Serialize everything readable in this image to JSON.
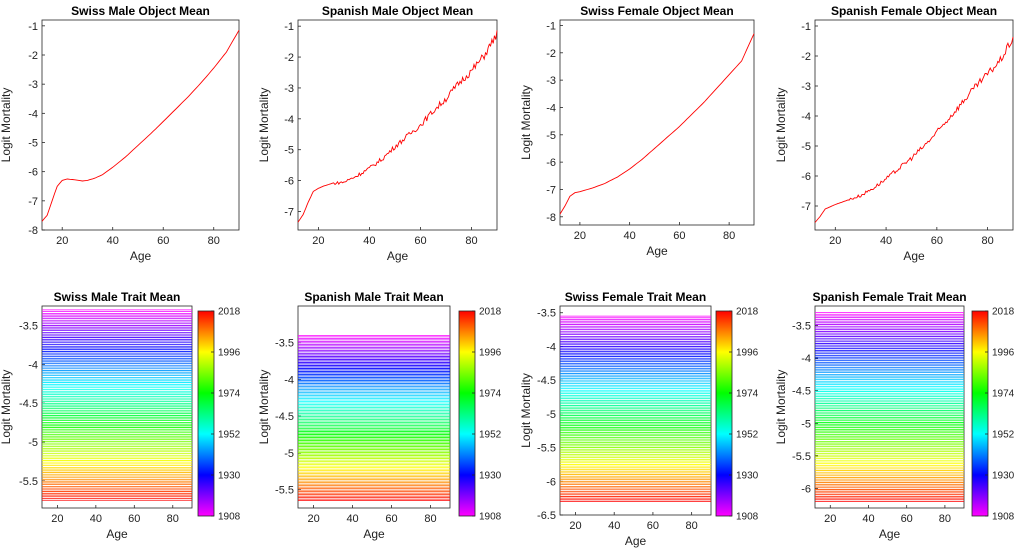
{
  "colors": {
    "object_line": "#ff0000",
    "axis": "#262626"
  },
  "chart_data": [
    {
      "type": "line",
      "title": "Swiss Male Object Mean",
      "xlabel": "Age",
      "ylabel": "Logit Mortality",
      "xlim": [
        12,
        90
      ],
      "ylim": [
        -8,
        -0.8
      ],
      "xticks": [
        20,
        40,
        60,
        80
      ],
      "yticks": [
        -8,
        -7,
        -6,
        -5,
        -4,
        -3,
        -2,
        -1
      ],
      "noisy": false,
      "series": [
        {
          "color": "#ff0000",
          "points": [
            [
              12,
              -7.7
            ],
            [
              14,
              -7.5
            ],
            [
              16,
              -7.0
            ],
            [
              18,
              -6.5
            ],
            [
              20,
              -6.3
            ],
            [
              22,
              -6.25
            ],
            [
              25,
              -6.28
            ],
            [
              28,
              -6.32
            ],
            [
              30,
              -6.3
            ],
            [
              33,
              -6.22
            ],
            [
              36,
              -6.1
            ],
            [
              40,
              -5.85
            ],
            [
              45,
              -5.5
            ],
            [
              50,
              -5.1
            ],
            [
              55,
              -4.7
            ],
            [
              60,
              -4.28
            ],
            [
              65,
              -3.85
            ],
            [
              70,
              -3.42
            ],
            [
              75,
              -2.95
            ],
            [
              80,
              -2.45
            ],
            [
              85,
              -1.9
            ],
            [
              90,
              -1.15
            ]
          ]
        }
      ]
    },
    {
      "type": "line",
      "title": "Spanish Male Object Mean",
      "xlabel": "Age",
      "ylabel": "Logit Mortality",
      "xlim": [
        12,
        90
      ],
      "ylim": [
        -7.6,
        -0.8
      ],
      "xticks": [
        20,
        40,
        60,
        80
      ],
      "yticks": [
        -7,
        -6,
        -5,
        -4,
        -3,
        -2,
        -1
      ],
      "noisy": true,
      "series": [
        {
          "color": "#ff0000",
          "points": [
            [
              12,
              -7.35
            ],
            [
              14,
              -7.1
            ],
            [
              16,
              -6.7
            ],
            [
              18,
              -6.35
            ],
            [
              20,
              -6.25
            ],
            [
              22,
              -6.18
            ],
            [
              25,
              -6.1
            ],
            [
              30,
              -6.05
            ],
            [
              35,
              -5.85
            ],
            [
              40,
              -5.6
            ],
            [
              45,
              -5.3
            ],
            [
              50,
              -4.9
            ],
            [
              55,
              -4.55
            ],
            [
              60,
              -4.2
            ],
            [
              65,
              -3.75
            ],
            [
              70,
              -3.35
            ],
            [
              75,
              -2.85
            ],
            [
              80,
              -2.45
            ],
            [
              85,
              -1.95
            ],
            [
              90,
              -1.25
            ]
          ]
        }
      ]
    },
    {
      "type": "line",
      "title": "Swiss Female Object Mean",
      "xlabel": "Age",
      "ylabel": "Logit Mortality",
      "xlim": [
        12,
        90
      ],
      "ylim": [
        -8.3,
        -0.8
      ],
      "xticks": [
        20,
        40,
        60,
        80
      ],
      "yticks": [
        -8,
        -7,
        -6,
        -5,
        -4,
        -3,
        -2,
        -1
      ],
      "noisy": false,
      "series": [
        {
          "color": "#ff0000",
          "points": [
            [
              12,
              -7.9
            ],
            [
              14,
              -7.6
            ],
            [
              16,
              -7.25
            ],
            [
              18,
              -7.12
            ],
            [
              20,
              -7.08
            ],
            [
              25,
              -6.95
            ],
            [
              30,
              -6.78
            ],
            [
              35,
              -6.55
            ],
            [
              40,
              -6.25
            ],
            [
              45,
              -5.9
            ],
            [
              50,
              -5.5
            ],
            [
              55,
              -5.1
            ],
            [
              60,
              -4.7
            ],
            [
              65,
              -4.25
            ],
            [
              70,
              -3.8
            ],
            [
              75,
              -3.3
            ],
            [
              80,
              -2.8
            ],
            [
              85,
              -2.3
            ],
            [
              90,
              -1.3
            ]
          ]
        }
      ]
    },
    {
      "type": "line",
      "title": "Spanish Female Object Mean",
      "xlabel": "Age",
      "ylabel": "Logit Mortality",
      "xlim": [
        12,
        90
      ],
      "ylim": [
        -7.8,
        -0.8
      ],
      "xticks": [
        20,
        40,
        60,
        80
      ],
      "yticks": [
        -7,
        -6,
        -5,
        -4,
        -3,
        -2,
        -1
      ],
      "noisy": true,
      "series": [
        {
          "color": "#ff0000",
          "points": [
            [
              12,
              -7.55
            ],
            [
              14,
              -7.35
            ],
            [
              16,
              -7.1
            ],
            [
              20,
              -6.95
            ],
            [
              25,
              -6.8
            ],
            [
              30,
              -6.65
            ],
            [
              35,
              -6.4
            ],
            [
              40,
              -6.1
            ],
            [
              45,
              -5.75
            ],
            [
              50,
              -5.4
            ],
            [
              55,
              -5.0
            ],
            [
              60,
              -4.55
            ],
            [
              65,
              -4.05
            ],
            [
              70,
              -3.55
            ],
            [
              75,
              -3.05
            ],
            [
              80,
              -2.6
            ],
            [
              85,
              -2.15
            ],
            [
              90,
              -1.4
            ]
          ]
        }
      ]
    },
    {
      "type": "line",
      "title": "Swiss Male Trait Mean",
      "xlabel": "Age",
      "ylabel": "Logit Mortality",
      "xlim": [
        12,
        90
      ],
      "ylim": [
        -5.85,
        -3.25
      ],
      "xticks": [
        20,
        40,
        60,
        80
      ],
      "yticks": [
        -5.5,
        -5,
        -4.5,
        -4,
        -3.5
      ],
      "year_range": [
        1908,
        2018
      ],
      "trait_range": [
        -5.75,
        -3.3
      ],
      "colorbar": {
        "min": 1908,
        "max": 2018,
        "ticks": [
          2018,
          1996,
          1974,
          1952,
          1930,
          1908
        ]
      }
    },
    {
      "type": "line",
      "title": "Spanish Male Trait Mean",
      "xlabel": "Age",
      "ylabel": "Logit Mortality",
      "xlim": [
        12,
        90
      ],
      "ylim": [
        -5.75,
        -3.0
      ],
      "xticks": [
        20,
        40,
        60,
        80
      ],
      "yticks": [
        -5.5,
        -5,
        -4.5,
        -4,
        -3.5
      ],
      "year_range": [
        1908,
        2018
      ],
      "trait_range": [
        -5.65,
        -3.4
      ],
      "colorbar": {
        "min": 1908,
        "max": 2018,
        "ticks": [
          2018,
          1996,
          1974,
          1952,
          1930,
          1908
        ]
      }
    },
    {
      "type": "line",
      "title": "Swiss Female Trait Mean",
      "xlabel": "Age",
      "ylabel": "Logit Mortality",
      "xlim": [
        12,
        90
      ],
      "ylim": [
        -6.5,
        -3.4
      ],
      "xticks": [
        20,
        40,
        60,
        80
      ],
      "yticks": [
        -6.5,
        -6,
        -5.5,
        -5,
        -4.5,
        -4,
        -3.5
      ],
      "year_range": [
        1908,
        2018
      ],
      "trait_range": [
        -6.3,
        -3.55
      ],
      "colorbar": {
        "min": 1908,
        "max": 2018,
        "ticks": [
          2018,
          1996,
          1974,
          1952,
          1930,
          1908
        ]
      }
    },
    {
      "type": "line",
      "title": "Spanish Female Trait Mean",
      "xlabel": "Age",
      "ylabel": "Logit Mortality",
      "xlim": [
        12,
        90
      ],
      "ylim": [
        -6.3,
        -3.2
      ],
      "xticks": [
        20,
        40,
        60,
        80
      ],
      "yticks": [
        -6,
        -5.5,
        -5,
        -4.5,
        -4,
        -3.5
      ],
      "year_range": [
        1908,
        2018
      ],
      "trait_range": [
        -6.2,
        -3.3
      ],
      "colorbar": {
        "min": 1908,
        "max": 2018,
        "ticks": [
          2018,
          1996,
          1974,
          1952,
          1930,
          1908
        ]
      }
    }
  ]
}
